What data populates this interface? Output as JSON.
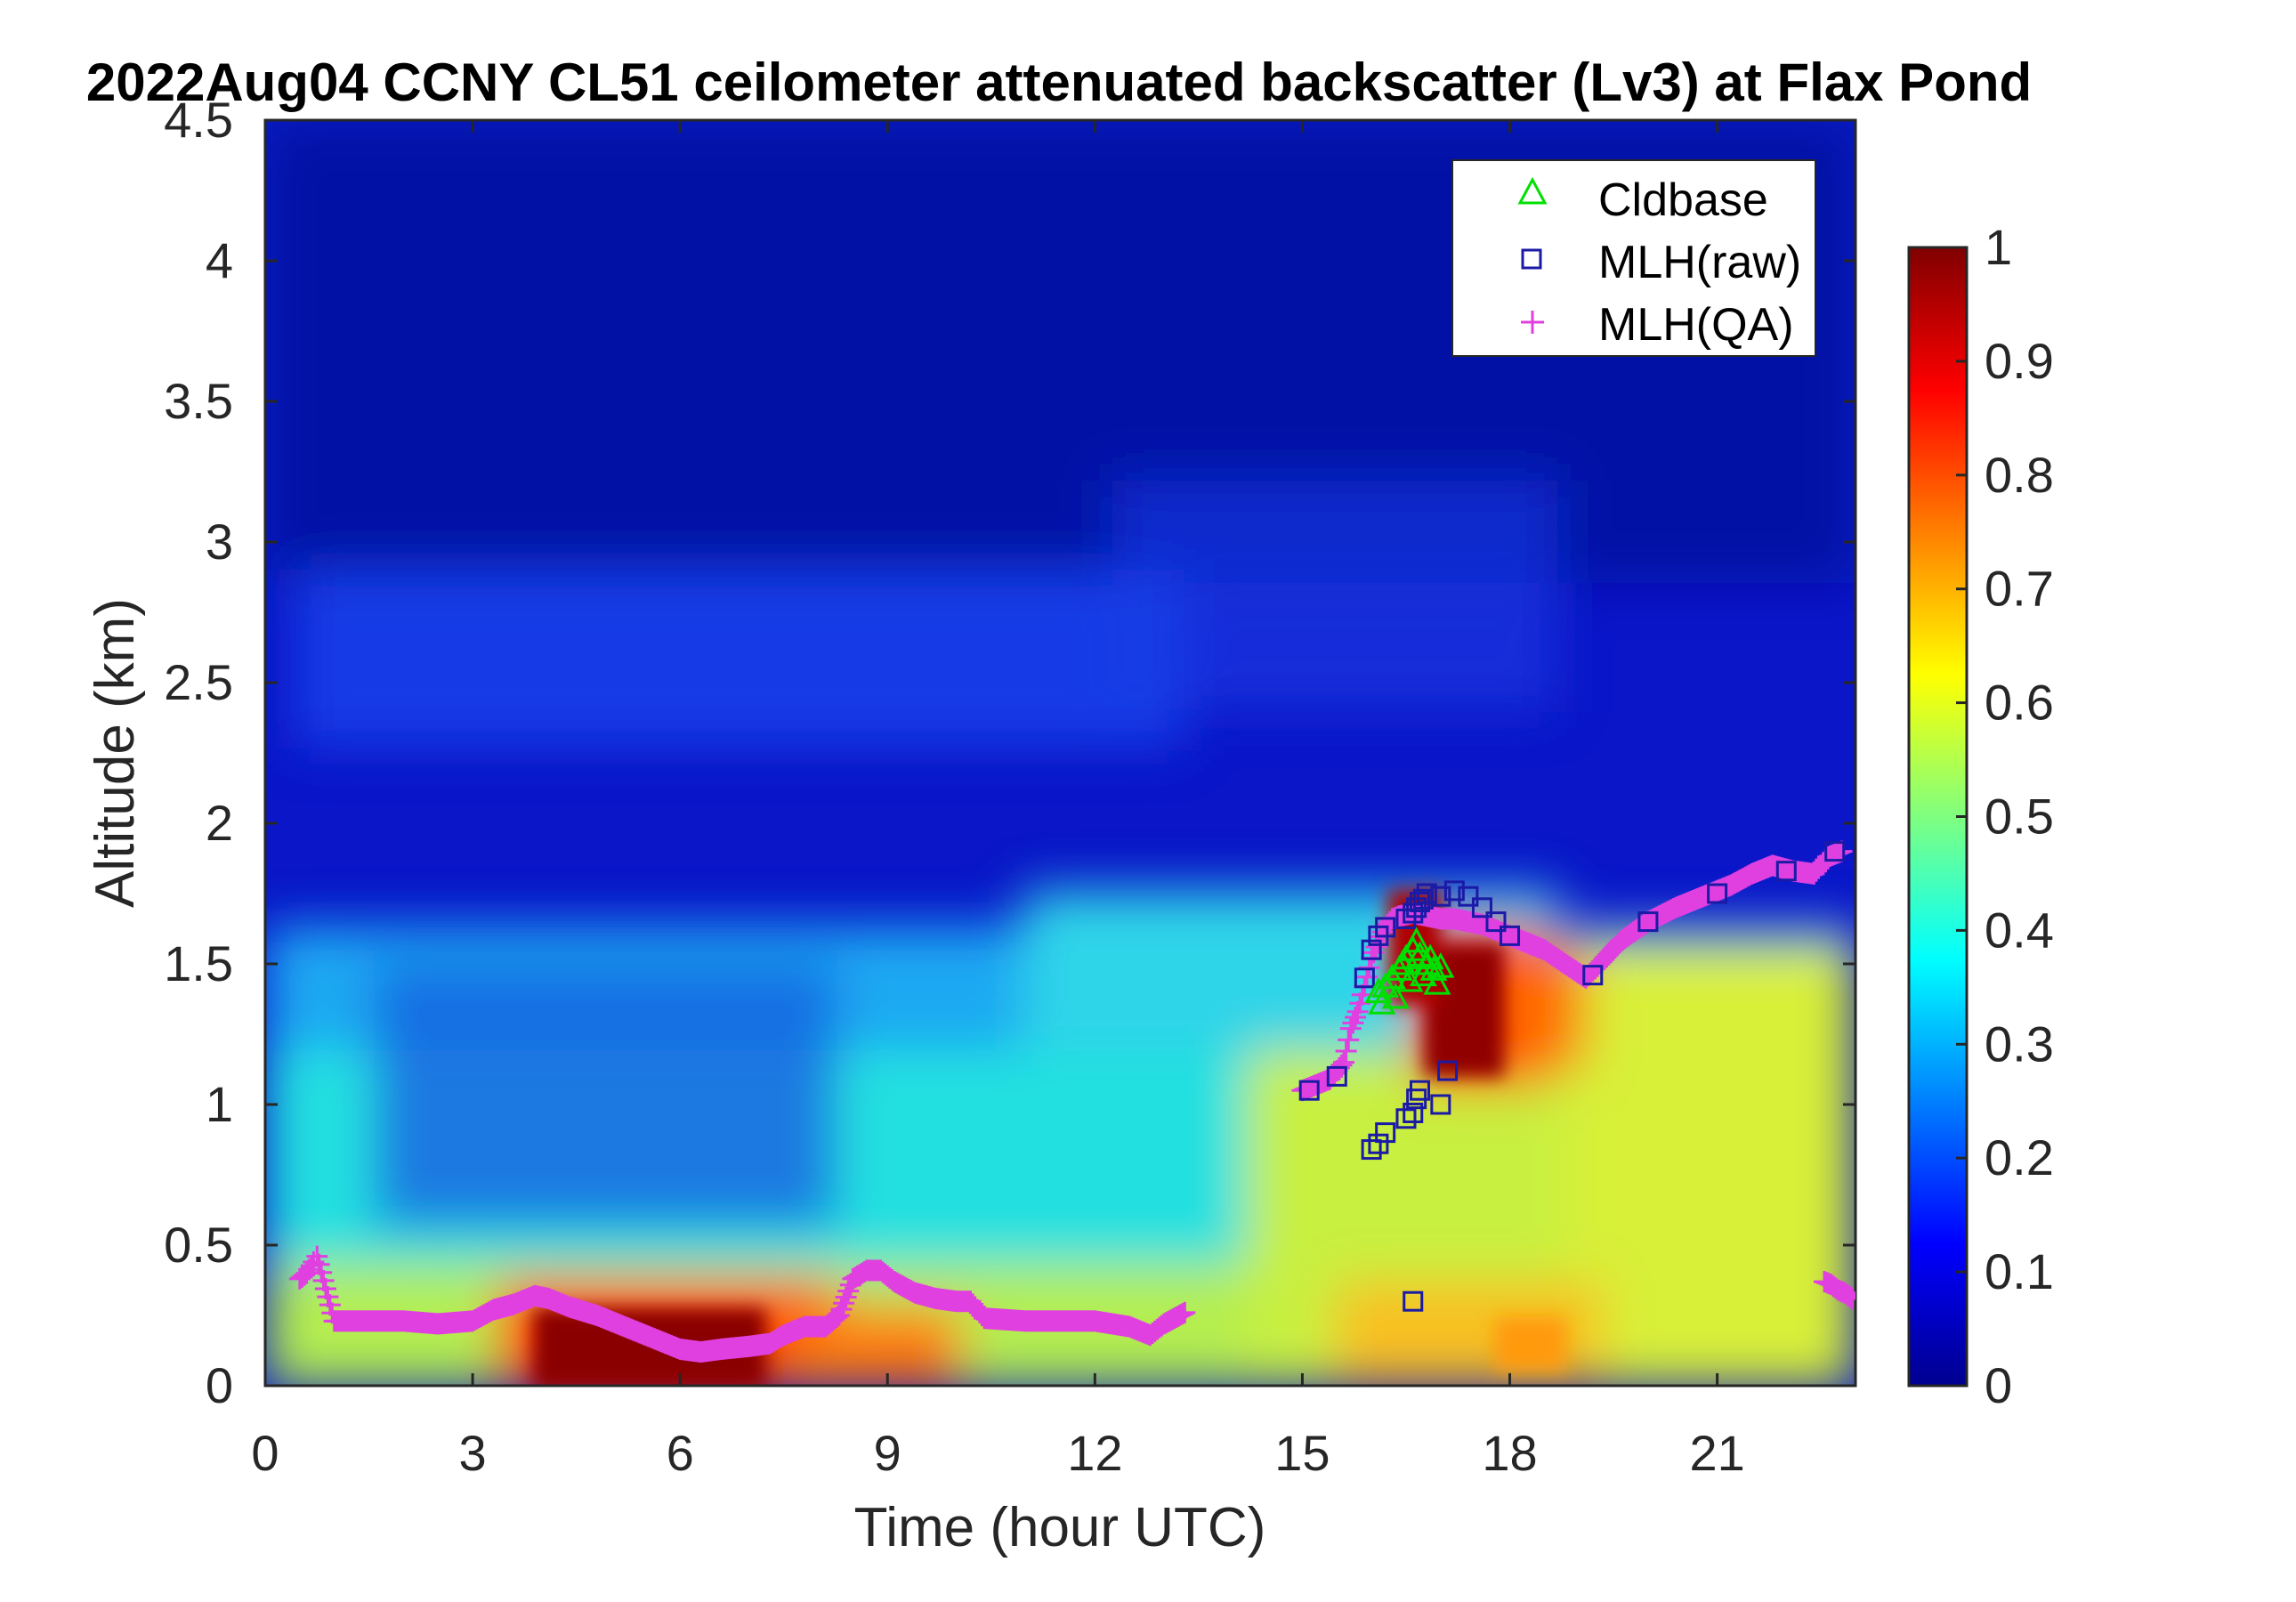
{
  "chart_data": {
    "type": "heatmap",
    "title": "2022Aug04 CCNY CL51 ceilometer attenuated backscatter (Lv3) at Flax Pond",
    "xlabel": "Time (hour UTC)",
    "ylabel": "Altitude (km)",
    "xlim": [
      0,
      23
    ],
    "ylim": [
      0,
      4.5
    ],
    "x_ticks": [
      0,
      3,
      6,
      9,
      12,
      15,
      18,
      21
    ],
    "x_tick_labels": [
      "0",
      "3",
      "6",
      "9",
      "12",
      "15",
      "18",
      "21"
    ],
    "y_ticks": [
      0,
      0.5,
      1,
      1.5,
      2,
      2.5,
      3,
      3.5,
      4,
      4.5
    ],
    "y_tick_labels": [
      "0",
      "0.5",
      "1",
      "1.5",
      "2",
      "2.5",
      "3",
      "3.5",
      "4",
      "4.5"
    ],
    "colorbar": {
      "range": [
        0,
        1
      ],
      "ticks": [
        0,
        0.1,
        0.2,
        0.3,
        0.4,
        0.5,
        0.6,
        0.7,
        0.8,
        0.9,
        1
      ],
      "tick_labels": [
        "0",
        "0.1",
        "0.2",
        "0.3",
        "0.4",
        "0.5",
        "0.6",
        "0.7",
        "0.8",
        "0.9",
        "1"
      ],
      "colormap": "jet"
    },
    "legend": {
      "placement": "top-right",
      "entries": [
        {
          "name": "Cldbase",
          "marker": "triangle",
          "color": "#00e000"
        },
        {
          "name": "MLH(raw)",
          "marker": "square",
          "color": "#1a1aa6"
        },
        {
          "name": "MLH(QA)",
          "marker": "plus",
          "color": "#e040e0"
        }
      ]
    },
    "series": [
      {
        "name": "MLH(QA)",
        "x": [
          0.5,
          0.6,
          0.7,
          0.75,
          1.0,
          1.5,
          2.0,
          2.5,
          3.0,
          3.3,
          3.6,
          3.9,
          4.1,
          4.4,
          4.8,
          5.2,
          5.6,
          6.0,
          6.3,
          6.6,
          7.0,
          7.3,
          7.5,
          7.8,
          8.1,
          8.3,
          8.5,
          8.7,
          8.9,
          9.1,
          9.4,
          9.7,
          10.0,
          10.2,
          10.4,
          11.0,
          11.5,
          12.0,
          12.5,
          12.8,
          13.0,
          13.3,
          15.0,
          15.2,
          15.4,
          15.6,
          15.7,
          15.8,
          15.9,
          16.0,
          16.1,
          16.2,
          16.3,
          16.4,
          16.6,
          16.8,
          17.0,
          17.2,
          17.4,
          17.6,
          17.8,
          18.0,
          18.1,
          18.5,
          19.1,
          19.3,
          19.6,
          20.0,
          20.4,
          20.8,
          21.2,
          21.5,
          21.8,
          22.1,
          22.4,
          22.6,
          22.8,
          22.55,
          22.65,
          22.75,
          22.85,
          22.95
        ],
        "y": [
          0.38,
          0.4,
          0.44,
          0.46,
          0.23,
          0.23,
          0.23,
          0.22,
          0.23,
          0.27,
          0.29,
          0.32,
          0.31,
          0.28,
          0.25,
          0.21,
          0.17,
          0.13,
          0.12,
          0.13,
          0.14,
          0.15,
          0.18,
          0.21,
          0.21,
          0.25,
          0.38,
          0.41,
          0.41,
          0.37,
          0.33,
          0.31,
          0.3,
          0.3,
          0.24,
          0.23,
          0.23,
          0.23,
          0.21,
          0.18,
          0.22,
          0.26,
          1.05,
          1.07,
          1.09,
          1.15,
          1.27,
          1.33,
          1.42,
          1.52,
          1.58,
          1.63,
          1.66,
          1.67,
          1.68,
          1.67,
          1.66,
          1.66,
          1.65,
          1.64,
          1.62,
          1.6,
          1.59,
          1.55,
          1.45,
          1.5,
          1.58,
          1.65,
          1.7,
          1.74,
          1.78,
          1.82,
          1.85,
          1.83,
          1.82,
          1.88,
          1.9,
          0.37,
          0.36,
          0.34,
          0.33,
          0.31
        ]
      },
      {
        "name": "MLH(raw)",
        "x": [
          15.1,
          15.5,
          15.9,
          16.0,
          16.1,
          16.2,
          16.5,
          16.6,
          16.65,
          16.7,
          16.75,
          16.8,
          17.0,
          17.2,
          17.4,
          17.6,
          17.8,
          18.0,
          19.2,
          20.0,
          21.0,
          22.0,
          22.7,
          16.0,
          16.1,
          16.2,
          16.5,
          16.6,
          16.65,
          16.7,
          17.0,
          17.1,
          16.6
        ],
        "y": [
          1.05,
          1.1,
          1.45,
          1.55,
          1.6,
          1.63,
          1.66,
          1.68,
          1.7,
          1.72,
          1.73,
          1.75,
          1.74,
          1.76,
          1.74,
          1.7,
          1.65,
          1.6,
          1.46,
          1.65,
          1.75,
          1.83,
          1.9,
          0.84,
          0.86,
          0.9,
          0.95,
          0.97,
          1.02,
          1.05,
          1.0,
          1.12,
          0.3
        ]
      },
      {
        "name": "Cldbase",
        "x": [
          16.1,
          16.2,
          16.3,
          16.4,
          16.5,
          16.6,
          16.7,
          16.8,
          16.9,
          16.35,
          16.55,
          16.75,
          16.95,
          16.15,
          16.45,
          16.65,
          16.85,
          17.0
        ],
        "y": [
          1.4,
          1.42,
          1.45,
          1.48,
          1.52,
          1.55,
          1.53,
          1.5,
          1.48,
          1.38,
          1.44,
          1.46,
          1.43,
          1.36,
          1.5,
          1.58,
          1.52,
          1.49
        ]
      }
    ]
  }
}
